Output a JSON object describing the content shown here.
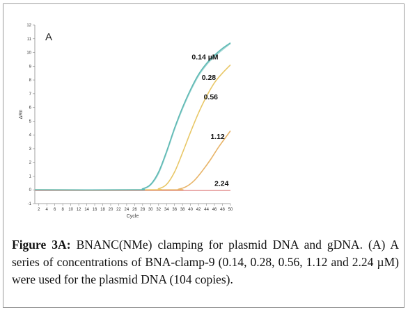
{
  "figure": {
    "panel_letter": "A",
    "caption_bold": "Figure 3A:",
    "caption_text": " BNANC(NMe) clamping for plasmid DNA and gDNA. (A) A series of concentrations of BNA-clamp-9 (0.14, 0.28, 0.56, 1.12 and 2.24 µM) were used for the plasmid DNA (104 copies)."
  },
  "chart_data": {
    "type": "line",
    "xlabel": "Cycle",
    "ylabel": "ΔRn",
    "xlim": [
      1,
      50
    ],
    "ylim": [
      -1,
      12
    ],
    "x_ticks": [
      2,
      4,
      6,
      8,
      10,
      12,
      14,
      16,
      18,
      20,
      22,
      24,
      26,
      28,
      30,
      32,
      34,
      36,
      38,
      40,
      42,
      44,
      46,
      48,
      50
    ],
    "y_ticks": [
      -1,
      0,
      1,
      2,
      3,
      4,
      5,
      6,
      7,
      8,
      9,
      10,
      11,
      12
    ],
    "grid": false,
    "series": [
      {
        "name": "0.14 µM",
        "color": "#5fb9b4",
        "x": [
          1,
          26,
          28,
          30,
          32,
          34,
          36,
          38,
          40,
          42,
          44,
          46,
          48,
          50
        ],
        "y": [
          0,
          0,
          0.08,
          0.4,
          1.3,
          2.8,
          4.5,
          6.0,
          7.3,
          8.4,
          9.2,
          9.8,
          10.3,
          10.7
        ]
      },
      {
        "name": "0.28",
        "color": "#9fd6d3",
        "x": [
          1,
          26,
          28,
          30,
          32,
          34,
          36,
          38,
          40,
          42,
          44,
          46,
          48,
          50
        ],
        "y": [
          0,
          0,
          0.06,
          0.35,
          1.2,
          2.7,
          4.4,
          5.9,
          7.2,
          8.3,
          9.1,
          9.7,
          10.2,
          10.65
        ]
      },
      {
        "name": "0.56",
        "color": "#e8c766",
        "x": [
          1,
          30,
          32,
          34,
          36,
          38,
          40,
          42,
          44,
          46,
          48,
          50
        ],
        "y": [
          0,
          0,
          0.08,
          0.4,
          1.3,
          2.7,
          4.2,
          5.6,
          6.8,
          7.8,
          8.5,
          9.1
        ]
      },
      {
        "name": "1.12",
        "color": "#e8b468",
        "x": [
          1,
          35,
          37,
          39,
          41,
          43,
          45,
          47,
          49,
          50
        ],
        "y": [
          0,
          0,
          0.05,
          0.25,
          0.7,
          1.4,
          2.2,
          3.1,
          3.9,
          4.3
        ]
      },
      {
        "name": "2.24",
        "color": "#e7a0a0",
        "x": [
          1,
          50
        ],
        "y": [
          -0.05,
          -0.05
        ]
      }
    ]
  }
}
